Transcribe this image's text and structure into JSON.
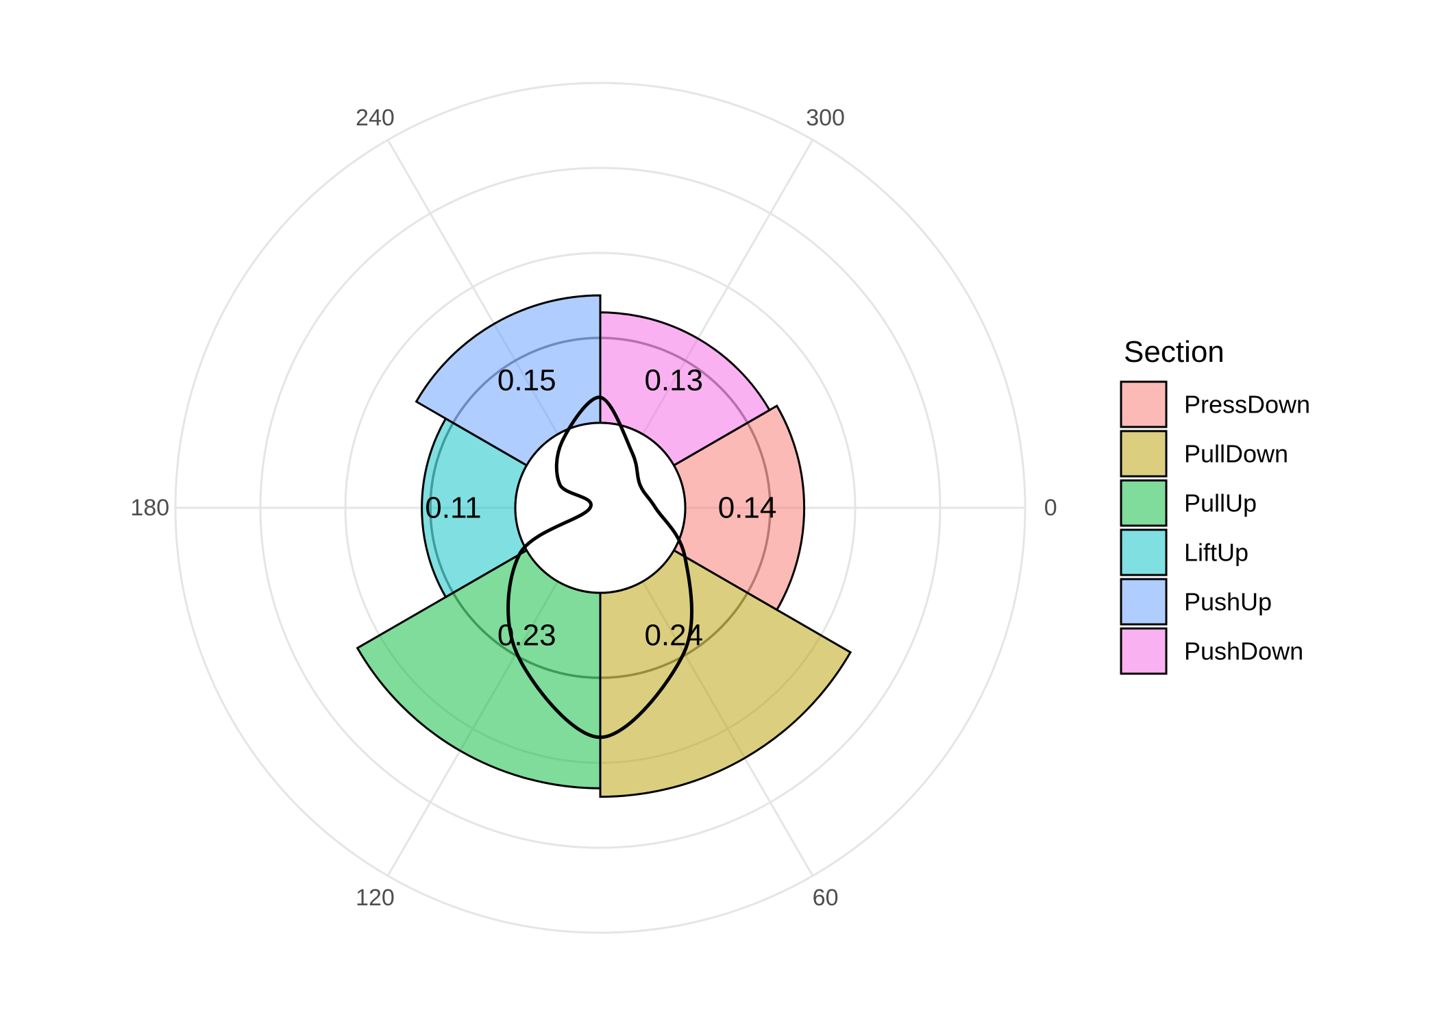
{
  "chart_data": {
    "type": "bar",
    "coordinate_system": "polar",
    "angle_direction": "clockwise",
    "angle_zero": "right",
    "angle_unit": "degrees",
    "angle_ticks": [
      0,
      60,
      120,
      180,
      240,
      300
    ],
    "angle_tick_labels": [
      "0",
      "60",
      "120",
      "180",
      "240",
      "300"
    ],
    "radial_range": [
      0,
      0.5
    ],
    "radial_gridlines": [
      0.1,
      0.2,
      0.3,
      0.4,
      0.5
    ],
    "inner_hole": 0.1,
    "reference_circle": 0.2,
    "sections": [
      {
        "name": "PressDown",
        "start": -30,
        "end": 30,
        "value": 0.14,
        "label": "0.14",
        "color": "#F8766D"
      },
      {
        "name": "PullDown",
        "start": 30,
        "end": 90,
        "value": 0.24,
        "label": "0.24",
        "color": "#B79F00"
      },
      {
        "name": "PullUp",
        "start": 90,
        "end": 150,
        "value": 0.23,
        "label": "0.23",
        "color": "#00BA38"
      },
      {
        "name": "LiftUp",
        "start": 150,
        "end": 210,
        "value": 0.11,
        "label": "0.11",
        "color": "#00BFC4"
      },
      {
        "name": "PushUp",
        "start": 210,
        "end": 270,
        "value": 0.15,
        "label": "0.15",
        "color": "#619CFF"
      },
      {
        "name": "PushDown",
        "start": 270,
        "end": 330,
        "value": 0.13,
        "label": "0.13",
        "color": "#F564E3"
      }
    ],
    "overlay_curve": {
      "x": [
        0,
        30,
        60,
        90,
        120,
        150,
        180,
        210,
        240,
        270,
        300,
        330
      ],
      "y": [
        0.065,
        0.115,
        0.197,
        0.27,
        0.197,
        0.11,
        0.012,
        0.055,
        0.09,
        0.13,
        0.075,
        0.054
      ]
    },
    "legend": {
      "title": "Section",
      "position": "right"
    },
    "grid": true
  }
}
